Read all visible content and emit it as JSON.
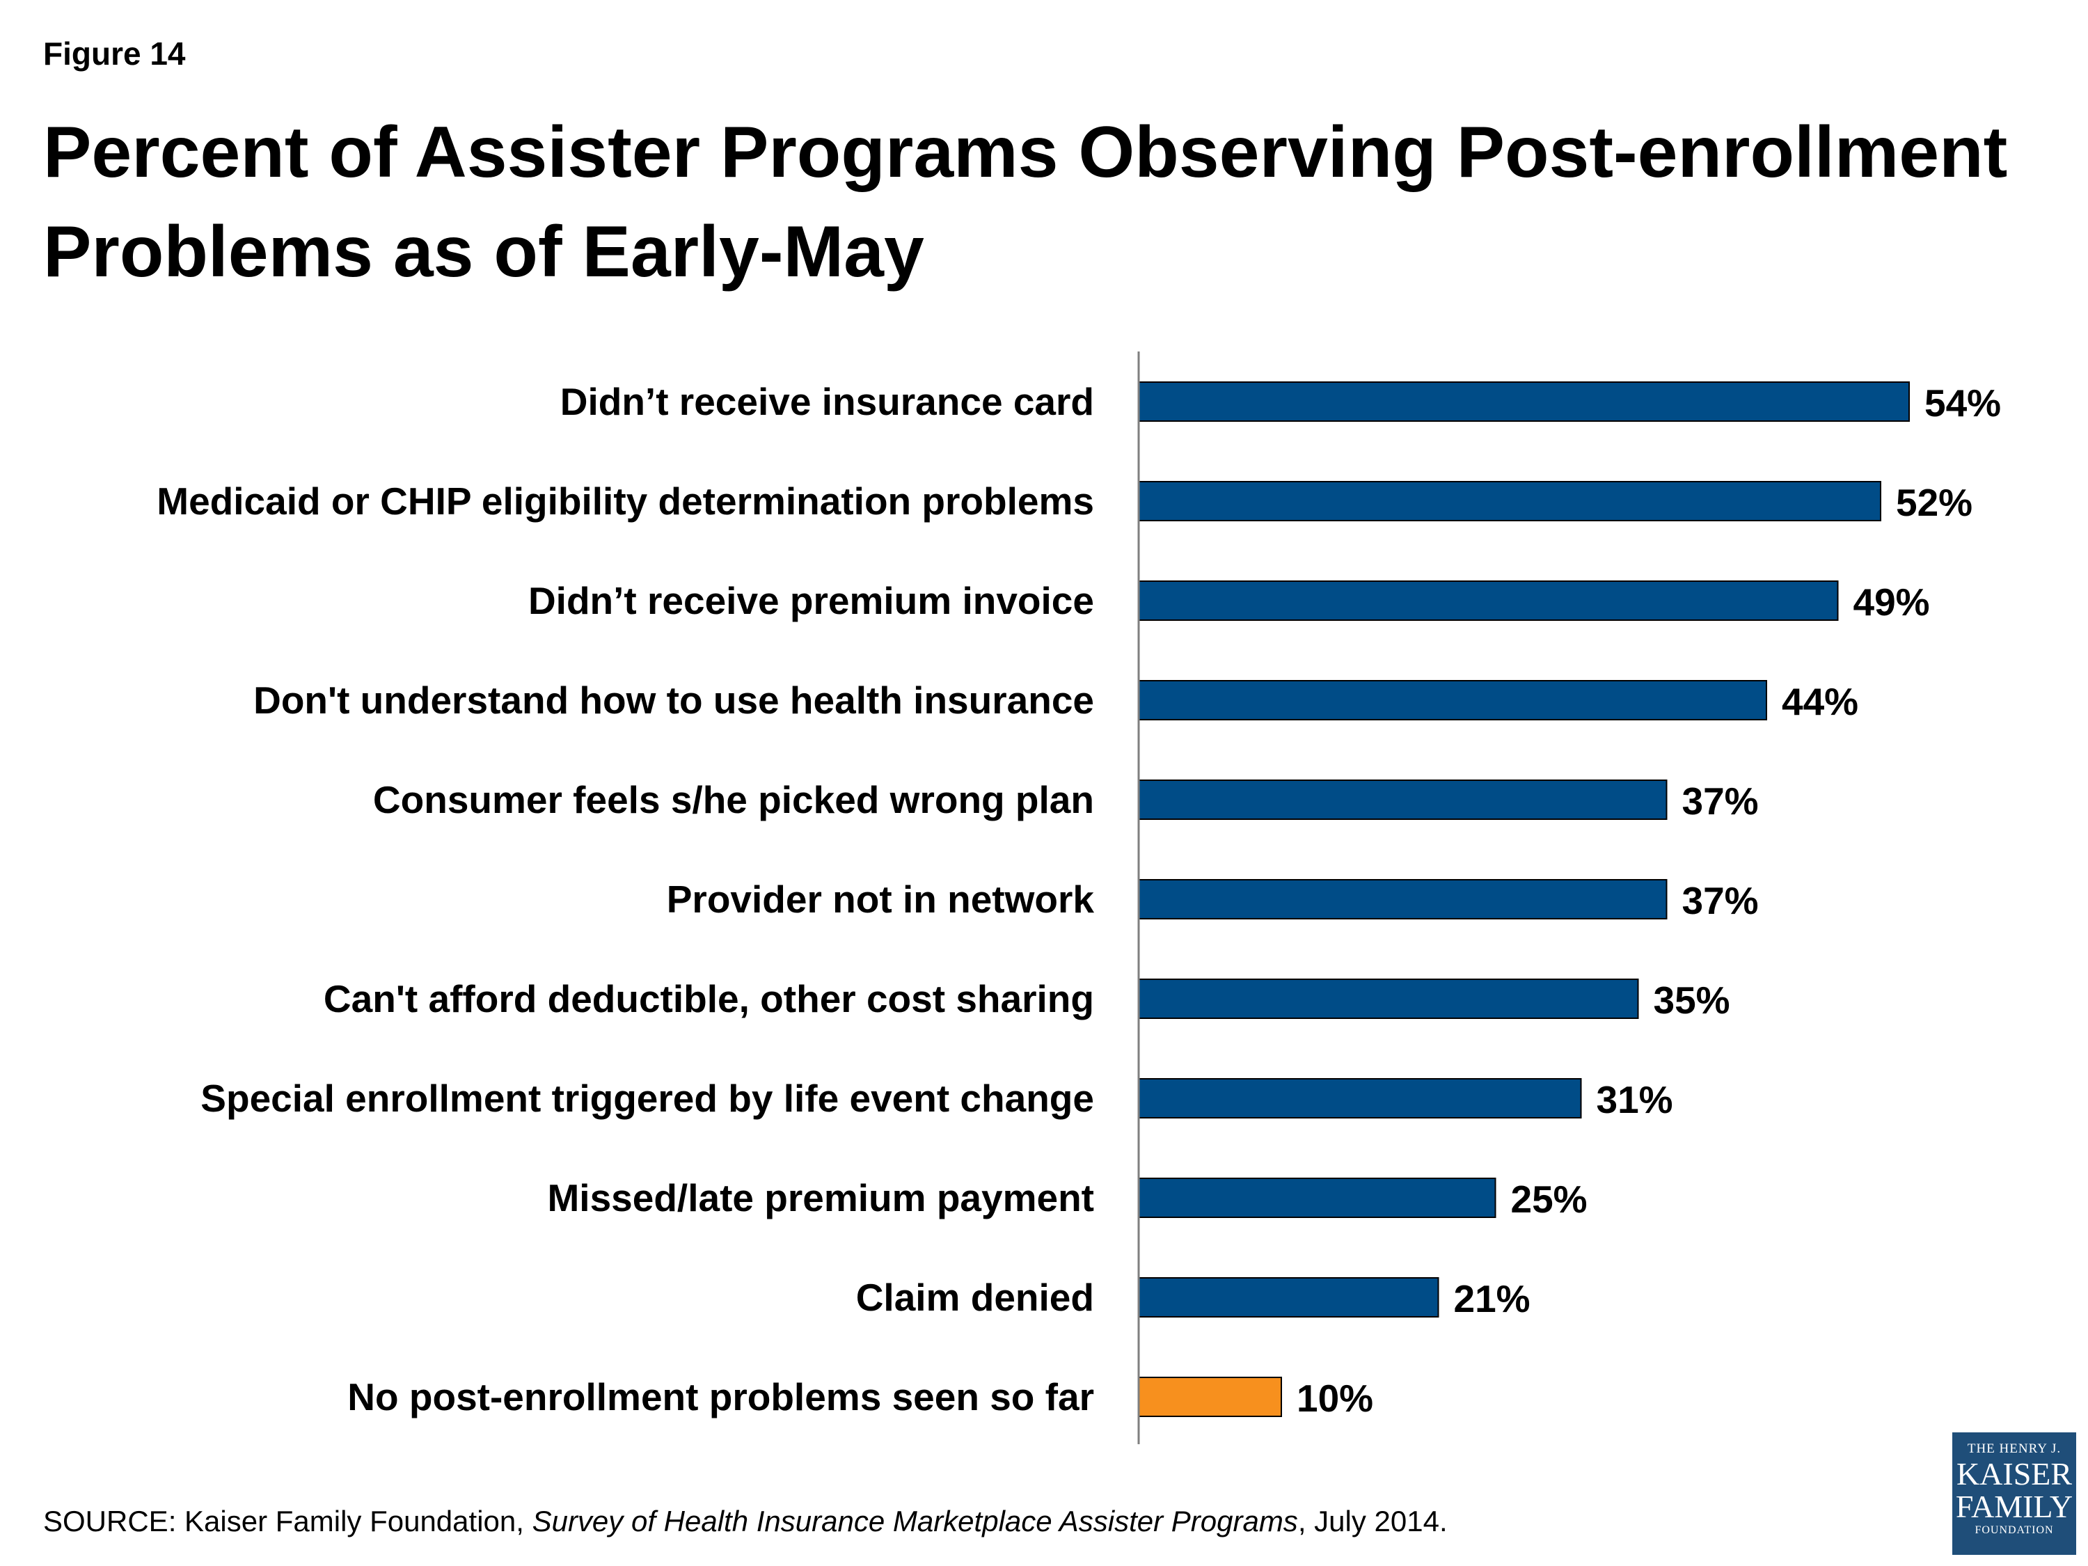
{
  "figure_label": "Figure 14",
  "source": {
    "prefix": "SOURCE: Kaiser Family Foundation, ",
    "title": "Survey of Health Insurance Marketplace Assister Programs",
    "suffix": ", July 2014."
  },
  "logo": {
    "line1": "THE HENRY J.",
    "line2": "KAISER",
    "line3": "FAMILY",
    "line4": "FOUNDATION"
  },
  "colors": {
    "primary_bar": "#004c87",
    "highlight_bar": "#f7901e",
    "axis": "#7f7f7f",
    "logo_bg": "#1f4e79"
  },
  "chart_data": {
    "type": "bar",
    "orientation": "horizontal",
    "title": "Percent of Assister Programs Observing Post-enrollment Problems as of Early-May",
    "xlabel": "",
    "ylabel": "",
    "xlim": [
      0,
      60
    ],
    "grid": false,
    "legend": "none",
    "categories": [
      "Didn’t receive insurance card",
      "Medicaid or CHIP eligibility determination problems",
      "Didn’t receive premium invoice",
      "Don't understand how to use health insurance",
      "Consumer feels s/he picked wrong plan",
      "Provider not in network",
      "Can't afford deductible, other cost sharing",
      "Special enrollment triggered by life event change",
      "Missed/late premium payment",
      "Claim denied",
      "No post-enrollment problems seen so far"
    ],
    "values": [
      54,
      52,
      49,
      44,
      37,
      37,
      35,
      31,
      25,
      21,
      10
    ],
    "value_labels": [
      "54%",
      "52%",
      "49%",
      "44%",
      "37%",
      "37%",
      "35%",
      "31%",
      "25%",
      "21%",
      "10%"
    ],
    "highlighted_index": 10
  }
}
